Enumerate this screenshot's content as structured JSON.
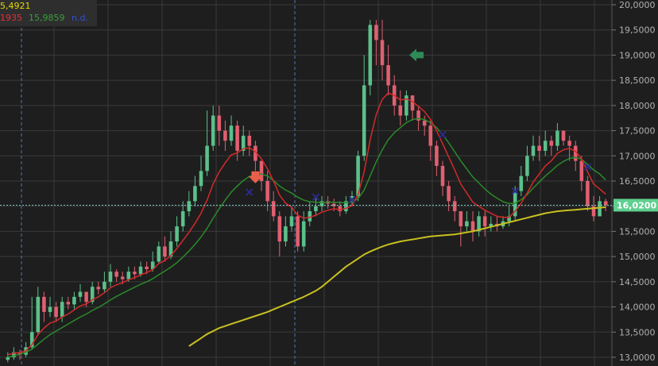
{
  "legend": {
    "row1": "5,4921",
    "ma_fast": "1935",
    "ma_mid": "15,9859",
    "ma_slow": "n.d."
  },
  "colors": {
    "background": "#1e1e1e",
    "grid": "#3a3a3a",
    "bull": "#5cc08a",
    "bear": "#e06070",
    "ma_fast": "#d42a2a",
    "ma_mid": "#2a8a2a",
    "ma_slow": "#c8c020",
    "price_line": "#7fc7c7",
    "cursor": "#4a78b0",
    "cross": "#2a2a8a",
    "arrow_down": "#e8604a",
    "arrow_left": "#2e8b57",
    "label_bg": "#5fcf90",
    "legend_yellow": "#e6d800",
    "legend_red": "#e0303a",
    "legend_green": "#3a9e3a",
    "legend_blue": "#3050d8"
  },
  "icons": {
    "signal_down": "down-arrow-icon",
    "signal_left": "left-arrow-icon",
    "crossover": "cross-marker-icon"
  },
  "chart_data": {
    "type": "candlestick",
    "ylim": [
      12900,
      20100
    ],
    "y_ticks": [
      "13,0000",
      "13,5000",
      "14,0000",
      "14,5000",
      "15,0000",
      "15,5000",
      "16,0000",
      "16,5000",
      "17,0000",
      "17,5000",
      "18,0000",
      "18,5000",
      "19,0000",
      "19,5000",
      "20,0000"
    ],
    "last_price_label": "16,0200",
    "last_price": 16020,
    "grid": true,
    "closes": [
      13000,
      13100,
      13050,
      13200,
      13500,
      14200,
      13900,
      14000,
      13800,
      14100,
      14050,
      14200,
      14300,
      14100,
      14400,
      14350,
      14500,
      14700,
      14600,
      14550,
      14700,
      14650,
      14800,
      14750,
      14900,
      15200,
      15000,
      15300,
      15600,
      15900,
      16100,
      16400,
      16700,
      17200,
      17800,
      17500,
      17300,
      17600,
      17100,
      17400,
      17200,
      16900,
      16500,
      16100,
      15800,
      15300,
      15600,
      15800,
      15200,
      15700,
      15900,
      16000,
      16100,
      16050,
      16000,
      15900,
      16100,
      16200,
      17000,
      18400,
      19600,
      19300,
      18800,
      18400,
      18000,
      17800,
      18200,
      17900,
      17700,
      17600,
      17200,
      16800,
      16400,
      16100,
      15900,
      15600,
      15700,
      15500,
      15800,
      15600,
      15650,
      15600,
      15700,
      15800,
      16300,
      16600,
      17000,
      17200,
      17100,
      17300,
      17200,
      17500,
      17300,
      17200,
      16900,
      16500,
      16000,
      15800,
      16100,
      16020
    ],
    "opens": [
      12950,
      13000,
      13100,
      13050,
      13200,
      13500,
      14200,
      13900,
      14000,
      13800,
      14100,
      14050,
      14200,
      14300,
      14100,
      14400,
      14350,
      14500,
      14700,
      14600,
      14550,
      14700,
      14650,
      14800,
      14750,
      14900,
      15200,
      15000,
      15300,
      15600,
      15900,
      16100,
      16400,
      16700,
      17200,
      17800,
      17500,
      17300,
      17600,
      17100,
      17400,
      17200,
      16900,
      16500,
      16100,
      15800,
      15300,
      15600,
      15800,
      15200,
      15700,
      15900,
      16000,
      16100,
      16050,
      16000,
      15900,
      16100,
      16200,
      17000,
      18400,
      19600,
      19300,
      18800,
      18400,
      18000,
      17800,
      18200,
      17900,
      17700,
      17600,
      17200,
      16800,
      16400,
      16100,
      15900,
      15600,
      15700,
      15500,
      15800,
      15600,
      15650,
      15600,
      15700,
      15800,
      16300,
      16600,
      17000,
      17200,
      17100,
      17300,
      17200,
      17500,
      17300,
      17200,
      16900,
      16500,
      16000,
      15800,
      16100
    ],
    "highs": [
      13100,
      13200,
      13150,
      13300,
      14200,
      14400,
      14300,
      14200,
      14100,
      14200,
      14200,
      14300,
      14450,
      14300,
      14500,
      14500,
      14700,
      14850,
      14750,
      14700,
      14800,
      14800,
      14900,
      14900,
      15100,
      15300,
      15400,
      15500,
      15800,
      16100,
      16300,
      16600,
      17000,
      17900,
      18000,
      18000,
      17700,
      17800,
      17700,
      17600,
      17500,
      17300,
      16900,
      16700,
      16300,
      15900,
      15800,
      16000,
      15900,
      15900,
      16100,
      16200,
      16200,
      16200,
      16150,
      16100,
      16200,
      16300,
      17100,
      19000,
      19700,
      19700,
      19700,
      19200,
      18600,
      18300,
      18300,
      18200,
      18000,
      17800,
      17700,
      17300,
      16900,
      16500,
      16200,
      15900,
      15900,
      15900,
      15900,
      15900,
      15800,
      15800,
      15800,
      16000,
      16400,
      16800,
      17200,
      17400,
      17400,
      17500,
      17400,
      17650,
      17500,
      17400,
      17300,
      17000,
      16600,
      16200,
      16200,
      16150
    ],
    "lows": [
      12900,
      12950,
      12950,
      13000,
      13150,
      13450,
      13700,
      13800,
      13700,
      13700,
      13950,
      13950,
      14100,
      14000,
      14050,
      14250,
      14300,
      14400,
      14500,
      14450,
      14500,
      14550,
      14600,
      14650,
      14700,
      14850,
      14900,
      14950,
      15200,
      15500,
      15800,
      16000,
      16300,
      16600,
      17100,
      17200,
      17100,
      17200,
      16900,
      17000,
      17000,
      16700,
      16300,
      15900,
      15700,
      15000,
      15200,
      15500,
      15100,
      15100,
      15600,
      15800,
      15900,
      15950,
      15900,
      15800,
      15850,
      16000,
      16100,
      16900,
      18200,
      18800,
      18500,
      18200,
      17800,
      17600,
      17700,
      17700,
      17500,
      17400,
      16900,
      16600,
      16200,
      15900,
      15700,
      15200,
      15500,
      15300,
      15400,
      15400,
      15500,
      15500,
      15550,
      15600,
      15700,
      16200,
      16500,
      16900,
      16900,
      17000,
      17000,
      17100,
      17200,
      16900,
      16700,
      16300,
      15900,
      15700,
      15800,
      15900
    ],
    "ma_fast": [
      13050,
      13080,
      13090,
      13130,
      13250,
      13450,
      13580,
      13680,
      13720,
      13800,
      13860,
      13940,
      14020,
      14060,
      14140,
      14200,
      14280,
      14380,
      14440,
      14480,
      14540,
      14580,
      14640,
      14680,
      14740,
      14860,
      14920,
      15020,
      15160,
      15320,
      15480,
      15660,
      15860,
      16120,
      16440,
      16680,
      16860,
      17020,
      17060,
      17140,
      17160,
      17080,
      16940,
      16740,
      16500,
      16220,
      16060,
      15980,
      15820,
      15760,
      15780,
      15820,
      15880,
      15920,
      15950,
      15930,
      15960,
      16010,
      16230,
      16680,
      17320,
      17820,
      18120,
      18250,
      18200,
      18110,
      18130,
      18080,
      17980,
      17880,
      17720,
      17500,
      17240,
      16980,
      16720,
      16440,
      16260,
      16080,
      16000,
      15920,
      15860,
      15800,
      15780,
      15780,
      15900,
      16060,
      16260,
      16480,
      16640,
      16800,
      16900,
      17050,
      17120,
      17150,
      17090,
      16940,
      16680,
      16440,
      16340,
      16240
    ],
    "ma_mid": [
      13000,
      13030,
      13060,
      13100,
      13160,
      13260,
      13360,
      13450,
      13520,
      13590,
      13660,
      13730,
      13800,
      13860,
      13930,
      13990,
      14060,
      14140,
      14210,
      14270,
      14330,
      14390,
      14450,
      14500,
      14560,
      14640,
      14710,
      14790,
      14880,
      14990,
      15110,
      15240,
      15390,
      15560,
      15760,
      15950,
      16120,
      16280,
      16400,
      16510,
      16590,
      16630,
      16640,
      16600,
      16510,
      16400,
      16320,
      16260,
      16180,
      16120,
      16090,
      16080,
      16070,
      16080,
      16080,
      16070,
      16070,
      16080,
      16150,
      16320,
      16600,
      16880,
      17120,
      17320,
      17460,
      17560,
      17660,
      17720,
      17740,
      17720,
      17660,
      17560,
      17420,
      17260,
      17080,
      16900,
      16740,
      16580,
      16460,
      16340,
      16240,
      16160,
      16090,
      16050,
      16060,
      16130,
      16230,
      16360,
      16480,
      16600,
      16700,
      16810,
      16890,
      16950,
      16970,
      16930,
      16830,
      16720,
      16640,
      16520
    ],
    "ma_slow_start_index": 30,
    "ma_slow": [
      13220,
      13300,
      13380,
      13460,
      13520,
      13580,
      13620,
      13660,
      13700,
      13740,
      13780,
      13820,
      13860,
      13900,
      13950,
      14000,
      14050,
      14100,
      14150,
      14200,
      14260,
      14320,
      14400,
      14500,
      14600,
      14700,
      14800,
      14880,
      14960,
      15040,
      15100,
      15150,
      15200,
      15240,
      15270,
      15300,
      15320,
      15340,
      15360,
      15380,
      15400,
      15410,
      15420,
      15430,
      15440,
      15460,
      15480,
      15500,
      15530,
      15560,
      15590,
      15620,
      15650,
      15680,
      15710,
      15740,
      15770,
      15800,
      15830,
      15860,
      15880,
      15900,
      15910,
      15920,
      15930,
      15940,
      15950,
      15960,
      15970,
      15980
    ]
  }
}
